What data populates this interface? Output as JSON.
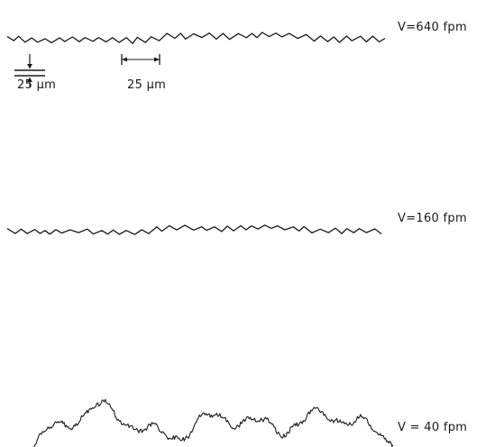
{
  "traces": [
    {
      "label": "V=640 fpm"
    },
    {
      "label": "V=160 fpm"
    },
    {
      "label": "V = 40 fpm"
    }
  ],
  "scale_bars": {
    "vertical": "25 µm",
    "horizontal": "25 µm"
  },
  "colors": {
    "ink": "#1a1a1a",
    "background": "#ffffff"
  }
}
